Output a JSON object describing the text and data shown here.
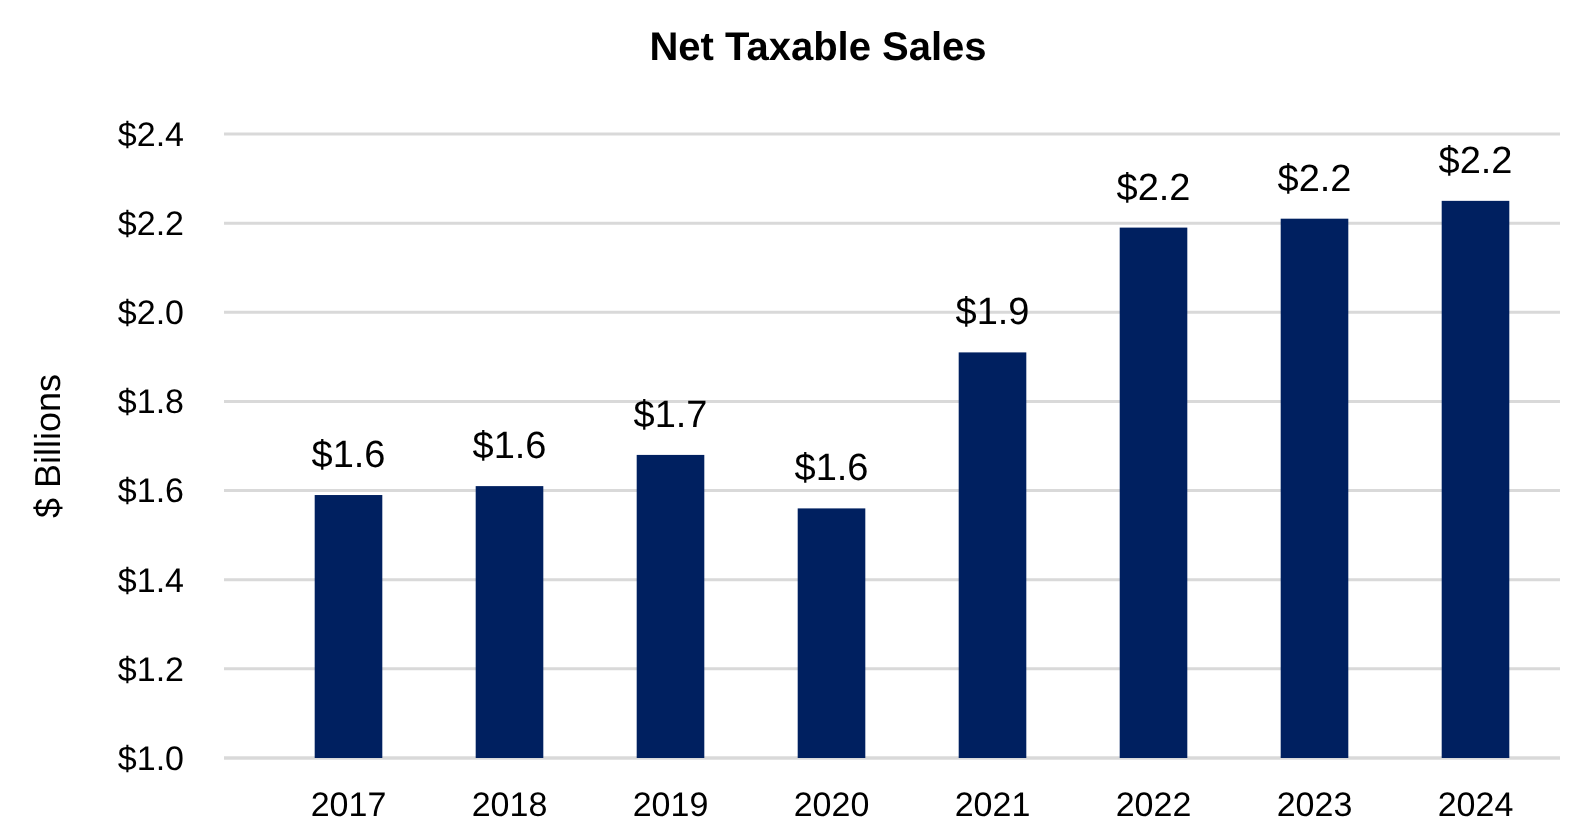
{
  "chart_data": {
    "type": "bar",
    "title": "Net Taxable Sales",
    "ylabel": "$ Billions",
    "categories": [
      "2017",
      "2018",
      "2019",
      "2020",
      "2021",
      "2022",
      "2023",
      "2024"
    ],
    "values": [
      1.59,
      1.61,
      1.68,
      1.56,
      1.91,
      2.19,
      2.21,
      2.25
    ],
    "value_labels": [
      "$1.6",
      "$1.6",
      "$1.7",
      "$1.6",
      "$1.9",
      "$2.2",
      "$2.2",
      "$2.2"
    ],
    "color": "#002060",
    "ylim": [
      1.0,
      2.4
    ],
    "yticks": [
      {
        "value": 1.0,
        "label": "$1.0"
      },
      {
        "value": 1.2,
        "label": "$1.2"
      },
      {
        "value": 1.4,
        "label": "$1.4"
      },
      {
        "value": 1.6,
        "label": "$1.6"
      },
      {
        "value": 1.8,
        "label": "$1.8"
      },
      {
        "value": 2.0,
        "label": "$2.0"
      },
      {
        "value": 2.2,
        "label": "$2.2"
      },
      {
        "value": 2.4,
        "label": "$2.4"
      }
    ],
    "grid": "y"
  }
}
